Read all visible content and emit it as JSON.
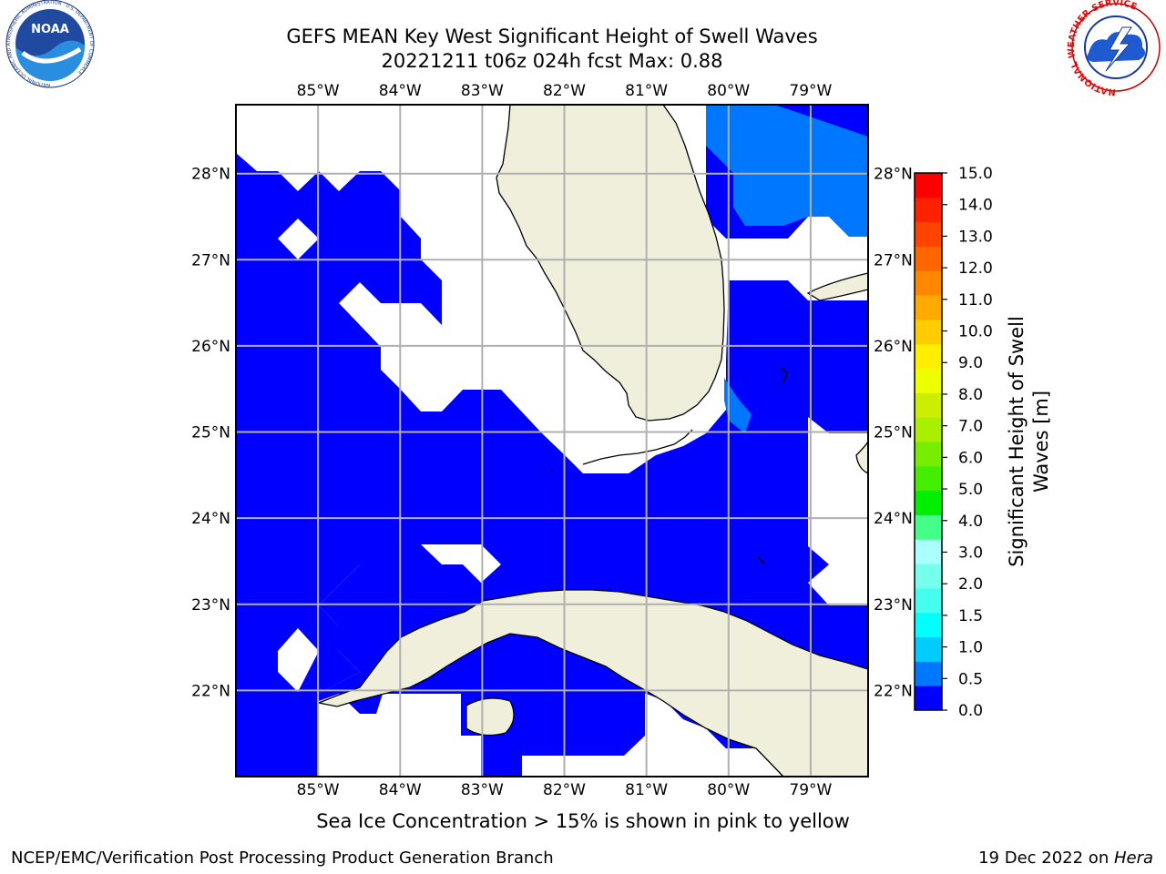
{
  "title": {
    "line1": "GEFS MEAN Key West Significant Height of Swell Waves",
    "line2": "20221211 t06z 024h fcst   Max: 0.88"
  },
  "map": {
    "lon_labels": [
      "85°W",
      "84°W",
      "83°W",
      "82°W",
      "81°W",
      "80°W",
      "79°W"
    ],
    "lat_labels": [
      "28°N",
      "27°N",
      "26°N",
      "25°N",
      "24°N",
      "23°N",
      "22°N"
    ],
    "lon_range": [
      -86.0,
      -78.3
    ],
    "lat_range": [
      21.0,
      28.8
    ],
    "land_color": "#efefdc",
    "ocean_swell_color": "#0000ff",
    "ocean_light_color": "#0077ff"
  },
  "colorbar": {
    "label_line1": "Significant Height of Swell",
    "label_line2": "Waves [m]",
    "ticks": [
      "15.0",
      "14.0",
      "13.0",
      "12.0",
      "11.0",
      "10.0",
      "9.0",
      "8.0",
      "7.0",
      "6.0",
      "5.0",
      "4.0",
      "3.0",
      "2.0",
      "1.5",
      "1.0",
      "0.5",
      "0.0"
    ],
    "colors_bottom_to_top": [
      "#0000ff",
      "#0077ff",
      "#00ccff",
      "#00ffff",
      "#44ffee",
      "#77ffee",
      "#aaffff",
      "#44ff88",
      "#00ee00",
      "#44ee00",
      "#77ee00",
      "#aaee00",
      "#ccee00",
      "#eeff00",
      "#ffee00",
      "#ffcc00",
      "#ffaa00",
      "#ff8800",
      "#ff6600",
      "#ff4400",
      "#ff2200",
      "#ff0000"
    ]
  },
  "caption": "Sea Ice Concentration > 15% is shown in pink to yellow",
  "footer": {
    "left": "NCEP/EMC/Verification Post Processing Product Generation Branch",
    "right_date": "19 Dec 2022 on ",
    "right_host": "Hera"
  },
  "logos": {
    "noaa_text": "NOAA",
    "noaa_ring_text": "NATIONAL OCEANIC AND ATMOSPHERIC ADMINISTRATION · U.S. DEPARTMENT OF COMMERCE",
    "nws_ring_text": "NATIONAL WEATHER SERVICE"
  }
}
